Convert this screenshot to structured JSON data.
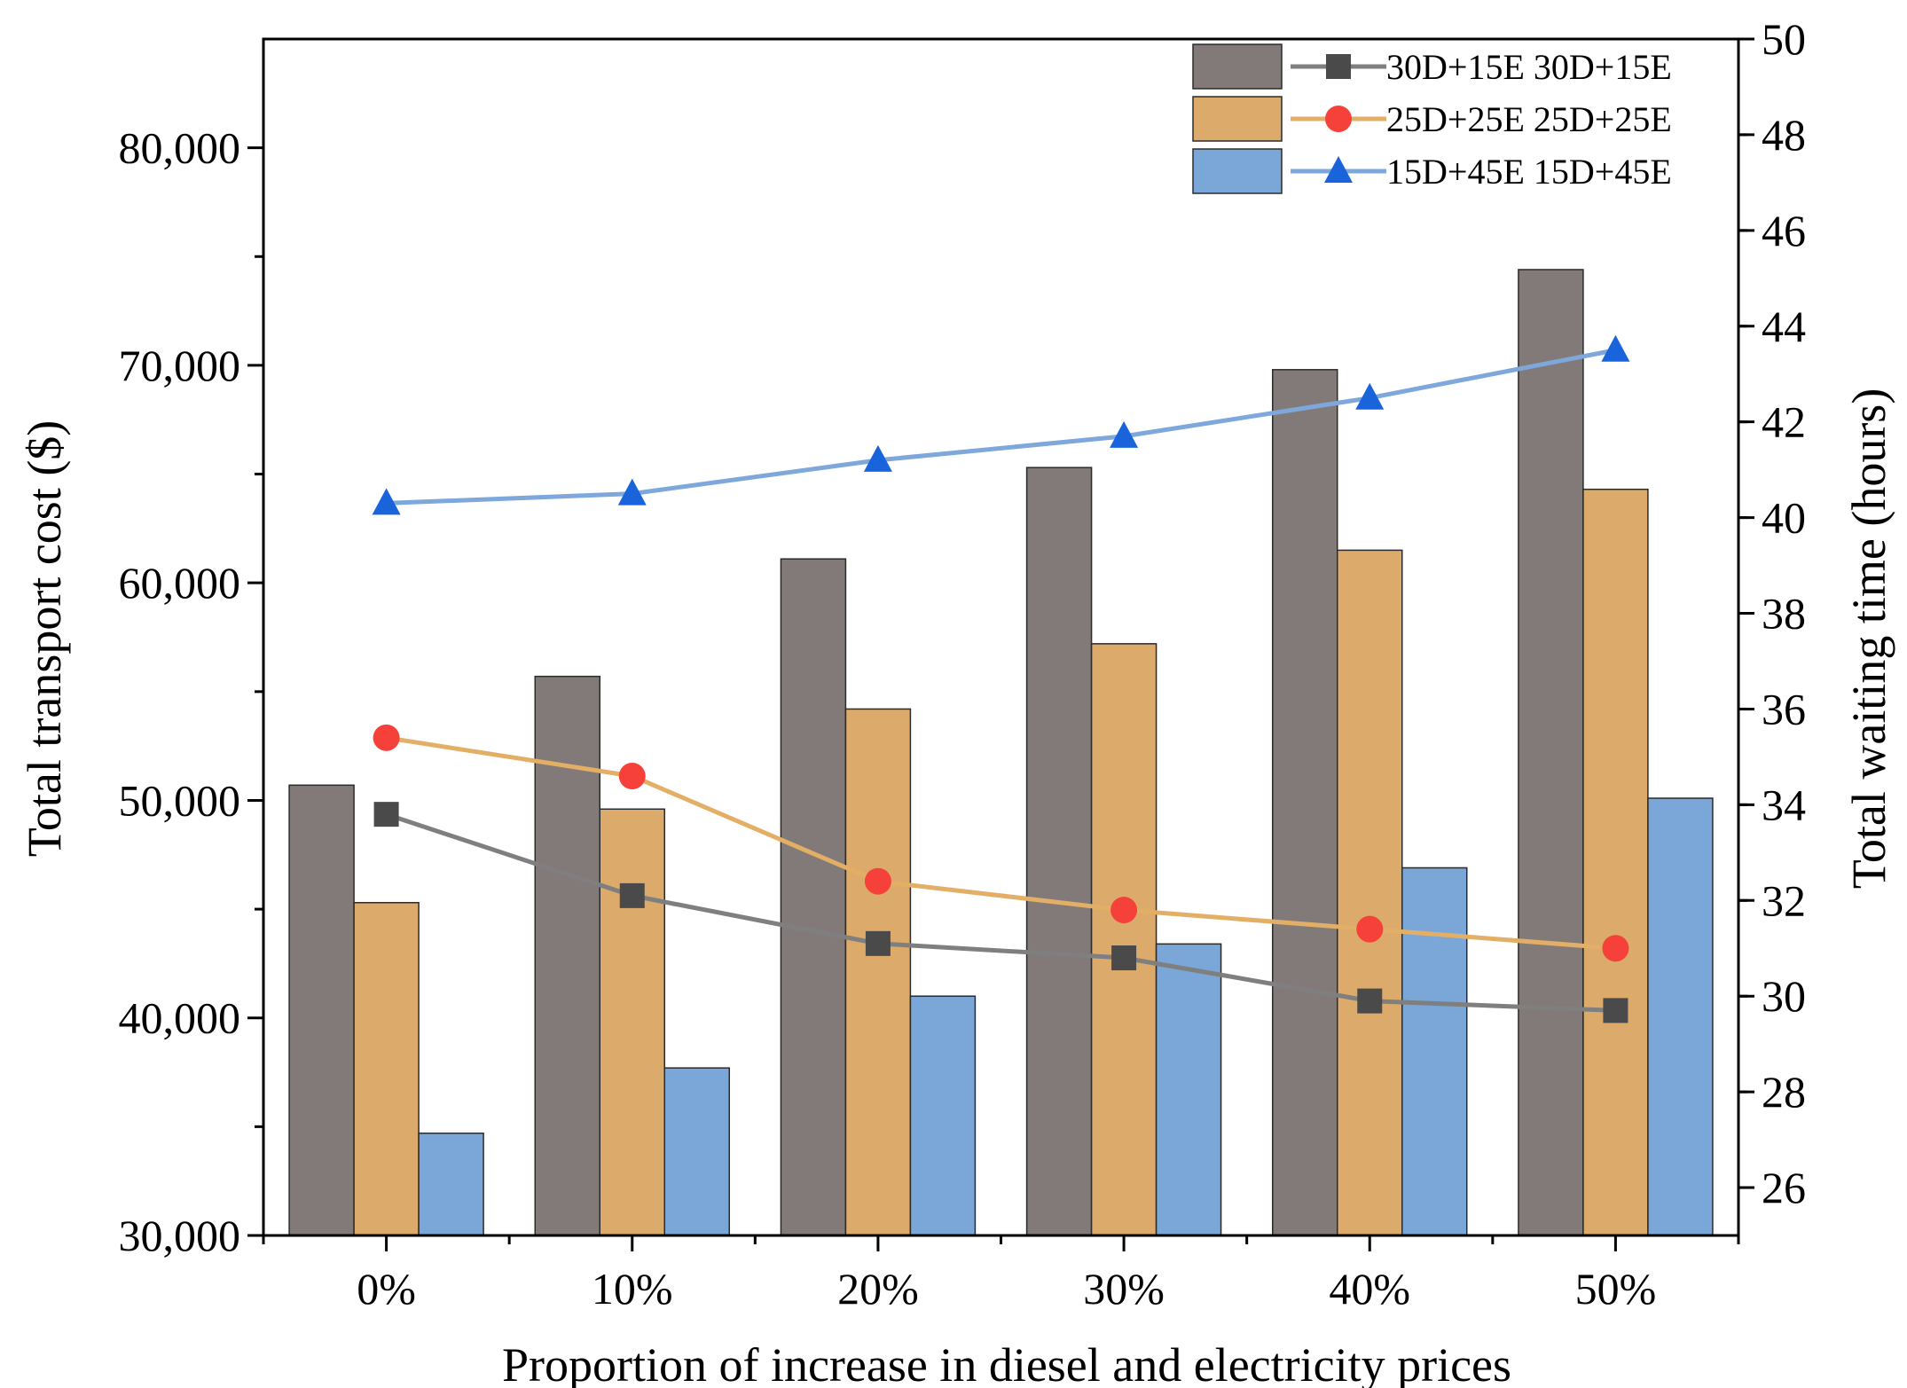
{
  "chart_data": {
    "type": "bar+line",
    "xlabel": "Proportion of increase in diesel and electricity prices",
    "ylabel": "Total transport cost ($)",
    "y2label": "Total waiting time (hours)",
    "categories": [
      "0%",
      "10%",
      "20%",
      "30%",
      "40%",
      "50%"
    ],
    "ylim": [
      30000,
      85000
    ],
    "y2lim": [
      25,
      50
    ],
    "y_ticks": [
      30000,
      40000,
      50000,
      60000,
      70000,
      80000
    ],
    "y_tick_labels": [
      "30,000",
      "40,000",
      "50,000",
      "60,000",
      "70,000",
      "80,000"
    ],
    "y2_ticks": [
      26,
      28,
      30,
      32,
      34,
      36,
      38,
      40,
      42,
      44,
      46,
      48,
      50
    ],
    "y2_tick_labels": [
      "26",
      "28",
      "30",
      "32",
      "34",
      "36",
      "38",
      "40",
      "42",
      "44",
      "46",
      "48",
      "50"
    ],
    "bar_series": [
      {
        "name": "30D+15E",
        "color": "#827a78",
        "values": [
          50700,
          55700,
          61100,
          65300,
          69800,
          74400
        ]
      },
      {
        "name": "25D+25E",
        "color": "#dcaa6b",
        "values": [
          45300,
          49600,
          54200,
          57200,
          61500,
          64300
        ]
      },
      {
        "name": "15D+45E",
        "color": "#7aa6d8",
        "values": [
          34700,
          37700,
          41000,
          43400,
          46900,
          50100
        ]
      }
    ],
    "line_series": [
      {
        "name": "30D+15E",
        "color": "#7f7f7f",
        "marker_color": "#4a4a4a",
        "marker": "square",
        "values": [
          33.8,
          32.1,
          31.1,
          30.8,
          29.9,
          29.7
        ]
      },
      {
        "name": "25D+25E",
        "color": "#e3ae66",
        "marker_color": "#f5413a",
        "marker": "circle",
        "values": [
          35.4,
          34.6,
          32.4,
          31.8,
          31.4,
          31.0
        ]
      },
      {
        "name": "15D+45E",
        "color": "#7ea7dc",
        "marker_color": "#1a64db",
        "marker": "triangle",
        "values": [
          40.3,
          40.5,
          41.2,
          41.7,
          42.5,
          43.5
        ]
      }
    ],
    "legend": {
      "position": "top-right",
      "entries": [
        "30D+15E 30D+15E",
        "25D+25E 25D+25E",
        "15D+45E 15D+45E"
      ]
    }
  }
}
